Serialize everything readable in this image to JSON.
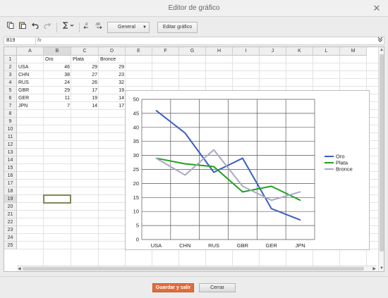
{
  "window": {
    "title": "Editor de gráfico",
    "close_glyph": "✕"
  },
  "toolbar": {
    "copy_icon": "copy-icon",
    "paste_icon": "paste-icon",
    "undo_icon": "undo-icon",
    "redo_icon": "redo-icon",
    "sum_icon": "sum-icon",
    "number_format": "General",
    "edit_chart_label": "Editar gráfico"
  },
  "formula_bar": {
    "cell_ref": "B19",
    "fx_label": "fx",
    "value": ""
  },
  "sheet": {
    "columns": [
      "A",
      "B",
      "C",
      "D",
      "E",
      "F",
      "G",
      "H",
      "I",
      "J",
      "K",
      "L",
      "M"
    ],
    "rows": [
      "1",
      "2",
      "3",
      "4",
      "5",
      "6",
      "7",
      "8",
      "9",
      "10",
      "11",
      "12",
      "13",
      "14",
      "15",
      "16",
      "17",
      "18",
      "19",
      "20",
      "21",
      "22",
      "23",
      "24",
      "25"
    ],
    "selected_column": "B",
    "selected_row": "19",
    "header": [
      "",
      "Oro",
      "Plata",
      "Bronce"
    ],
    "data": [
      [
        "USA",
        "46",
        "29",
        "29"
      ],
      [
        "CHN",
        "38",
        "27",
        "23"
      ],
      [
        "RUS",
        "24",
        "26",
        "32"
      ],
      [
        "GBR",
        "29",
        "17",
        "19"
      ],
      [
        "GER",
        "11",
        "19",
        "14"
      ],
      [
        "JPN",
        "7",
        "14",
        "17"
      ]
    ]
  },
  "chart_data": {
    "type": "line",
    "title": "",
    "xlabel": "",
    "ylabel": "",
    "categories": [
      "USA",
      "CHN",
      "RUS",
      "GBR",
      "GER",
      "JPN"
    ],
    "series": [
      {
        "name": "Oro",
        "values": [
          46,
          38,
          24,
          29,
          11,
          7
        ],
        "color": "#3a5fc0"
      },
      {
        "name": "Plata",
        "values": [
          29,
          27,
          26,
          17,
          19,
          14
        ],
        "color": "#1fa01f"
      },
      {
        "name": "Bronce",
        "values": [
          29,
          23,
          32,
          19,
          14,
          17
        ],
        "color": "#a9a9c2"
      }
    ],
    "yticks": [
      "0",
      "5",
      "10",
      "15",
      "20",
      "25",
      "30",
      "35",
      "40",
      "45",
      "50"
    ],
    "ylim": [
      0,
      50
    ],
    "grid": true,
    "legend": "right"
  },
  "footer": {
    "save_label": "Guardar y salir",
    "cancel_label": "Cerrar"
  },
  "colors": {
    "accent": "#e06c3a",
    "selection_border": "#7d8a54"
  }
}
